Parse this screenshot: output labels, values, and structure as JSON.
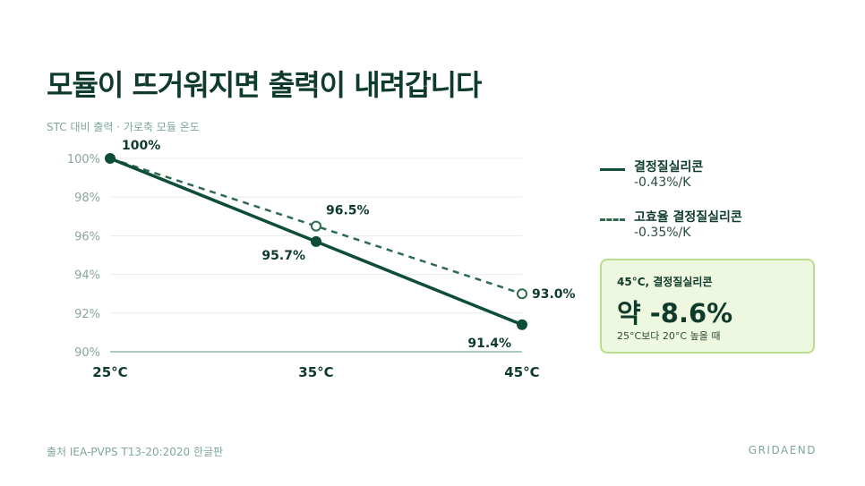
{
  "title": "모듈이 뜨거워지면 출력이 내려갑니다",
  "subtitle": "STC 대비 출력 · 가로축 모듈 온도",
  "colors": {
    "primary": "#0e4d36",
    "secondary": "#2e6a4e",
    "grid": "#e6eeea",
    "axis": "#8fb8a4",
    "callout_bg": "#eef7df",
    "callout_border": "#b8e08a"
  },
  "chart_data": {
    "type": "line",
    "categories": [
      "25°C",
      "35°C",
      "45°C"
    ],
    "y_ticks": [
      "100%",
      "98%",
      "96%",
      "94%",
      "92%",
      "90%"
    ],
    "ylim": [
      90,
      100
    ],
    "grid": true,
    "legend_position": "right",
    "series": [
      {
        "name": "결정질실리콘",
        "rate": "-0.43%/K",
        "style": "solid",
        "values": [
          100,
          95.7,
          91.4
        ],
        "labels": [
          "100%",
          "95.7%",
          "91.4%"
        ]
      },
      {
        "name": "고효율 결정질실리콘",
        "rate": "-0.35%/K",
        "style": "dashed",
        "values": [
          100,
          96.5,
          93.0
        ],
        "labels": [
          "",
          "96.5%",
          "93.0%"
        ]
      }
    ]
  },
  "callout": {
    "label": "45°C, 결정질실리콘",
    "value": "약 -8.6%",
    "note": "25°C보다 20°C 높을 때"
  },
  "footer": {
    "source": "출처 IEA-PVPS T13-20:2020 한글판",
    "brand": "GRIDAEND"
  }
}
